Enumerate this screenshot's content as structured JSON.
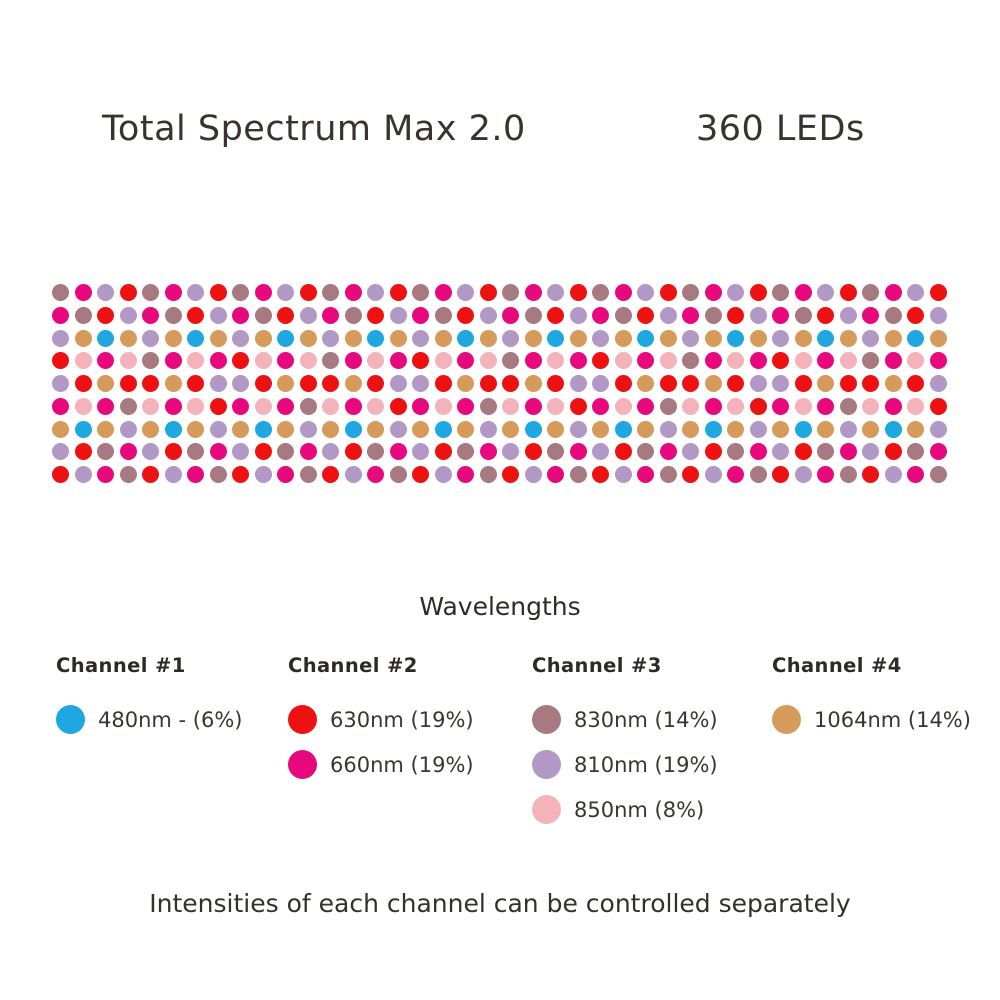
{
  "header": {
    "title": "Total Spectrum Max 2.0",
    "led_count": "360 LEDs"
  },
  "colors": {
    "C": {
      "wavelength": "480nm",
      "hex": "#1EA7E0"
    },
    "R": {
      "wavelength": "630nm",
      "hex": "#EE1111"
    },
    "M": {
      "wavelength": "660nm",
      "hex": "#E8087E"
    },
    "V": {
      "wavelength": "810nm",
      "hex": "#B298C4"
    },
    "B": {
      "wavelength": "830nm",
      "hex": "#A67A80"
    },
    "P": {
      "wavelength": "850nm",
      "hex": "#F4B3BB"
    },
    "T": {
      "wavelength": "1064nm",
      "hex": "#D69A5B"
    }
  },
  "grid": {
    "rows": 9,
    "columns": 40,
    "total_leds": 360,
    "row_patterns": [
      "BMVRBMVRBMVRBMVRBMVRBMVRBMVRBMVRBMVRBMVR",
      "MBRVMBRVMBRVMBRVMBRVMBRVMBRVMBRVMBRVMBRV",
      "VTCTVTCTVTCTVTCTVTCTVTCTVTCTVTCTVTCTVTCT",
      "RPMPBMPMRPMPBMPMRPMPBMPMRPMPBMPMRPMPBMPM",
      "VRTRRTRVVRTRRTRVVRTRRTRVVRTRRTRVVRTRRTRV",
      "MPMBPMPRMPMBPMPRMPMBPMPRMPMBPMPRMPMBPMPR",
      "TCTVTCTVTCTVTCTVTCTVTCTVTCTVTCTVTCTVTCTV",
      "VRBMVRBMVRBMVRBMVRBMVRBMVRBMVRBMVRBMVRBM",
      "RVMBRVMBRVMBRVMBRVMBRVMBRVMBRVMBRVMBRVMB"
    ]
  },
  "legend": {
    "title": "Wavelengths",
    "channels": [
      {
        "label": "Channel #1",
        "items": [
          {
            "key": "C",
            "text": "480nm - (6%)"
          }
        ]
      },
      {
        "label": "Channel #2",
        "items": [
          {
            "key": "R",
            "text": "630nm (19%)"
          },
          {
            "key": "M",
            "text": "660nm (19%)"
          }
        ]
      },
      {
        "label": "Channel #3",
        "items": [
          {
            "key": "B",
            "text": "830nm (14%)"
          },
          {
            "key": "V",
            "text": "810nm (19%)"
          },
          {
            "key": "P",
            "text": "850nm (8%)"
          }
        ]
      },
      {
        "label": "Channel #4",
        "items": [
          {
            "key": "T",
            "text": "1064nm (14%)"
          }
        ]
      }
    ]
  },
  "footer": {
    "note": "Intensities of each channel can be controlled separately"
  }
}
